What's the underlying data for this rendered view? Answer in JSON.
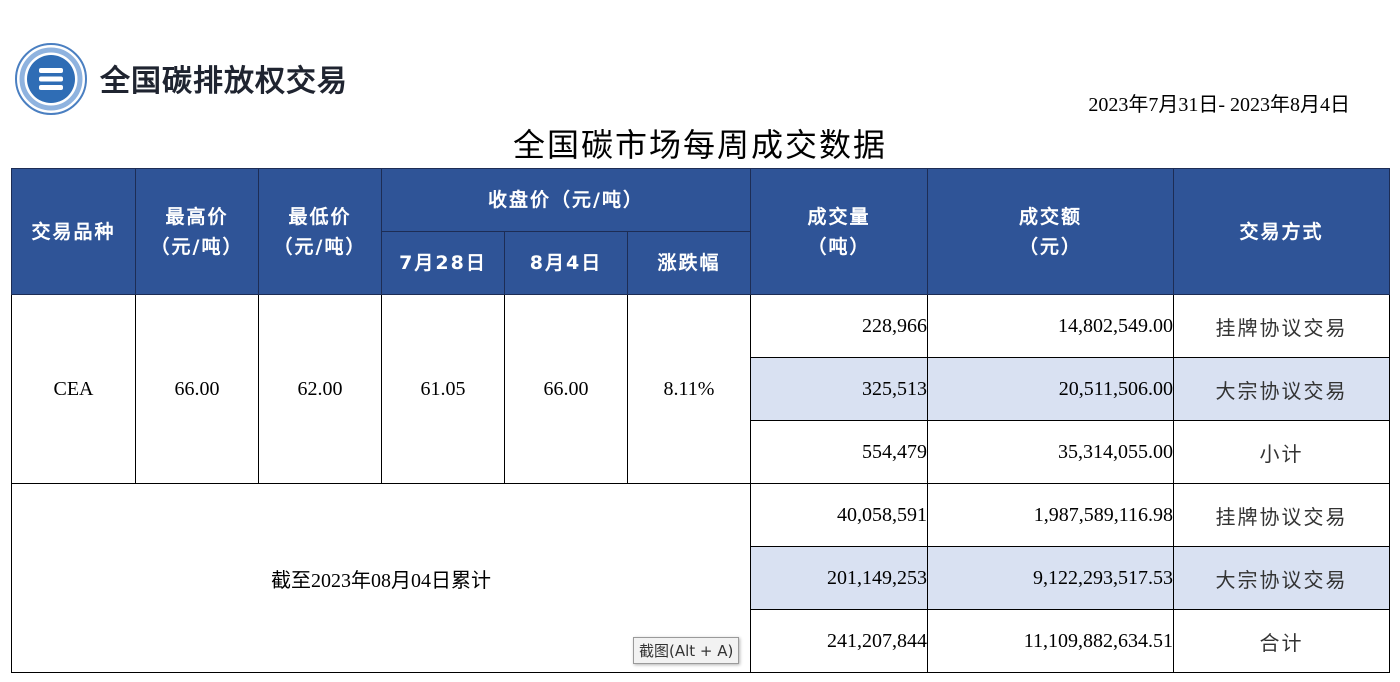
{
  "header": {
    "logo_text": "全国碳排放权交易",
    "date_range": "2023年7月31日- 2023年8月4日",
    "title": "全国碳市场每周成交数据"
  },
  "colors": {
    "header_bg": "#2f5497",
    "highlight_row": "#d9e1f2"
  },
  "table": {
    "headers": {
      "product": "交易品种",
      "high_price": "最高价",
      "high_unit": "（元/吨）",
      "low_price": "最低价",
      "low_unit": "（元/吨）",
      "close_price": "收盘价（元/吨）",
      "close_prev": "7月28日",
      "close_curr": "8月4日",
      "change": "涨跌幅",
      "volume": "成交量",
      "volume_unit": "（吨）",
      "amount": "成交额",
      "amount_unit": "（元）",
      "method": "交易方式"
    },
    "weekly": {
      "product": "CEA",
      "high": "66.00",
      "low": "62.00",
      "close_prev": "61.05",
      "close_curr": "66.00",
      "change": "8.11%",
      "rows": [
        {
          "volume": "228,966",
          "amount": "14,802,549.00",
          "method": "挂牌协议交易"
        },
        {
          "volume": "325,513",
          "amount": "20,511,506.00",
          "method": "大宗协议交易"
        },
        {
          "volume": "554,479",
          "amount": "35,314,055.00",
          "method": "小计"
        }
      ]
    },
    "cumulative": {
      "label": "截至2023年08月04日累计",
      "rows": [
        {
          "volume": "40,058,591",
          "amount": "1,987,589,116.98",
          "method": "挂牌协议交易"
        },
        {
          "volume": "201,149,253",
          "amount": "9,122,293,517.53",
          "method": "大宗协议交易"
        },
        {
          "volume": "241,207,844",
          "amount": "11,109,882,634.51",
          "method": "合计"
        }
      ]
    }
  },
  "tooltip": {
    "text": "截图(Alt + A)"
  }
}
